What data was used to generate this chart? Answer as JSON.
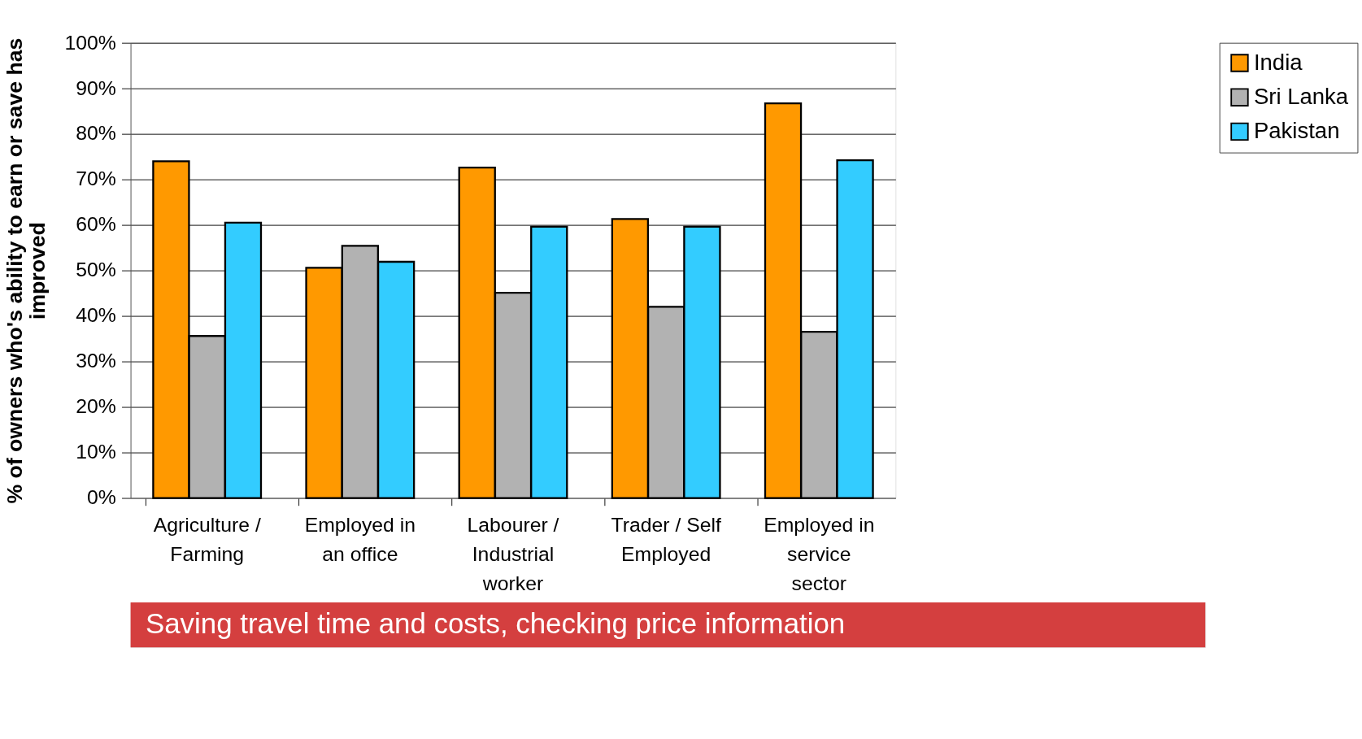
{
  "chart_data": {
    "type": "bar",
    "ylabel": "% of owners who's ability to earn or save has\nimproved",
    "categories": [
      "Agriculture /\nFarming",
      "Employed in\nan office",
      "Labourer /\nIndustrial\nworker",
      "Trader / Self\nEmployed",
      "Employed in\nservice\nsector"
    ],
    "series": [
      {
        "name": "India",
        "color": "#ff9900",
        "values": [
          74,
          50.6,
          72.6,
          61.3,
          86.7
        ]
      },
      {
        "name": "Sri Lanka",
        "color": "#b2b2b2",
        "values": [
          35.6,
          55.4,
          45.1,
          42.0,
          36.5
        ]
      },
      {
        "name": "Pakistan",
        "color": "#33ccff",
        "values": [
          60.5,
          51.9,
          59.6,
          59.6,
          74.2
        ]
      }
    ],
    "ylim": [
      0,
      100
    ],
    "yticks": [
      {
        "value": 0,
        "label": "0%"
      },
      {
        "value": 10,
        "label": "10%"
      },
      {
        "value": 20,
        "label": "20%"
      },
      {
        "value": 30,
        "label": "30%"
      },
      {
        "value": 40,
        "label": "40%"
      },
      {
        "value": 50,
        "label": "50%"
      },
      {
        "value": 60,
        "label": "60%"
      },
      {
        "value": 70,
        "label": "70%"
      },
      {
        "value": 80,
        "label": "80%"
      },
      {
        "value": 90,
        "label": "90%"
      },
      {
        "value": 100,
        "label": "100%"
      }
    ],
    "grid": "y",
    "legend": "right",
    "annotations": [
      "Saving travel time and costs, checking price information"
    ]
  }
}
